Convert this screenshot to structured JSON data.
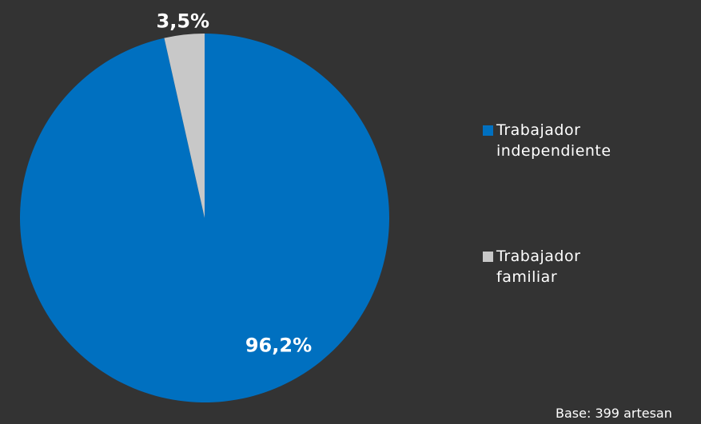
{
  "chart_data": {
    "type": "pie",
    "categories": [
      "Trabajador independiente",
      "Trabajador familiar"
    ],
    "values": [
      96.2,
      3.5
    ],
    "value_labels": [
      "96,2%",
      "3,5%"
    ],
    "colors": [
      "#0070c0",
      "#c8c8c8"
    ],
    "legend": "right",
    "note": "Base: 399 artesan"
  }
}
